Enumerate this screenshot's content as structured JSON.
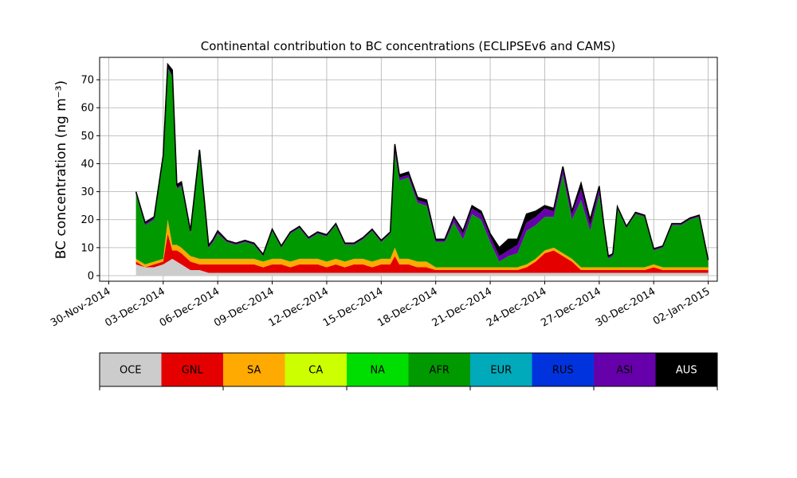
{
  "chart_data": {
    "type": "area",
    "title": "Continental contribution to BC concentrations (ECLIPSEv6 and CAMS)",
    "xlabel": "",
    "ylabel": "BC concentration (ng m⁻³)",
    "ylim": [
      -2,
      78
    ],
    "xlim": [
      "2014-11-29 12:00",
      "2015-01-02 12:00"
    ],
    "yticks": [
      0,
      10,
      20,
      30,
      40,
      50,
      60,
      70
    ],
    "xticks": [
      "30-Nov-2014",
      "03-Dec-2014",
      "06-Dec-2014",
      "09-Dec-2014",
      "12-Dec-2014",
      "15-Dec-2014",
      "18-Dec-2014",
      "21-Dec-2014",
      "24-Dec-2014",
      "27-Dec-2014",
      "30-Dec-2014",
      "02-Jan-2015"
    ],
    "xtick_dates": [
      "2014-11-30",
      "2014-12-03",
      "2014-12-06",
      "2014-12-09",
      "2014-12-12",
      "2014-12-15",
      "2014-12-18",
      "2014-12-21",
      "2014-12-24",
      "2014-12-27",
      "2014-12-30",
      "2015-01-02"
    ],
    "grid": true,
    "stacked": true,
    "x": [
      "2014-12-01 12:00",
      "2014-12-02 00:00",
      "2014-12-02 12:00",
      "2014-12-03 00:00",
      "2014-12-03 06:00",
      "2014-12-03 12:00",
      "2014-12-03 18:00",
      "2014-12-04 00:00",
      "2014-12-04 12:00",
      "2014-12-05 00:00",
      "2014-12-05 12:00",
      "2014-12-05 18:00",
      "2014-12-06 00:00",
      "2014-12-06 12:00",
      "2014-12-07 00:00",
      "2014-12-07 12:00",
      "2014-12-08 00:00",
      "2014-12-08 12:00",
      "2014-12-09 00:00",
      "2014-12-09 12:00",
      "2014-12-10 00:00",
      "2014-12-10 12:00",
      "2014-12-11 00:00",
      "2014-12-11 12:00",
      "2014-12-12 00:00",
      "2014-12-12 12:00",
      "2014-12-13 00:00",
      "2014-12-13 12:00",
      "2014-12-14 00:00",
      "2014-12-14 12:00",
      "2014-12-15 00:00",
      "2014-12-15 12:00",
      "2014-12-15 18:00",
      "2014-12-16 00:00",
      "2014-12-16 12:00",
      "2014-12-17 00:00",
      "2014-12-17 12:00",
      "2014-12-18 00:00",
      "2014-12-18 12:00",
      "2014-12-19 00:00",
      "2014-12-19 12:00",
      "2014-12-20 00:00",
      "2014-12-20 12:00",
      "2014-12-21 00:00",
      "2014-12-21 12:00",
      "2014-12-22 00:00",
      "2014-12-22 12:00",
      "2014-12-23 00:00",
      "2014-12-23 12:00",
      "2014-12-24 00:00",
      "2014-12-24 12:00",
      "2014-12-25 00:00",
      "2014-12-25 12:00",
      "2014-12-26 00:00",
      "2014-12-26 12:00",
      "2014-12-27 00:00",
      "2014-12-27 06:00",
      "2014-12-27 12:00",
      "2014-12-27 18:00",
      "2014-12-28 00:00",
      "2014-12-28 12:00",
      "2014-12-29 00:00",
      "2014-12-29 12:00",
      "2014-12-30 00:00",
      "2014-12-30 12:00",
      "2014-12-31 00:00",
      "2014-12-31 12:00",
      "2015-01-01 00:00",
      "2015-01-01 12:00",
      "2015-01-02 00:00"
    ],
    "series": [
      {
        "name": "OCE",
        "color": "#cccccc",
        "values": [
          4,
          3,
          3,
          4,
          5,
          6,
          5,
          4,
          2,
          2,
          1,
          1,
          1,
          1,
          1,
          1,
          1,
          1,
          1,
          1,
          1,
          1,
          1,
          1,
          1,
          1,
          1,
          1,
          1,
          1,
          1,
          1,
          1,
          1,
          1,
          1,
          1,
          1,
          1,
          1,
          1,
          1,
          1,
          1,
          1,
          1,
          1,
          1,
          1,
          1,
          1,
          1,
          1,
          1,
          1,
          1,
          1,
          1,
          1,
          1,
          1,
          1,
          1,
          1,
          1,
          1,
          1,
          1,
          1,
          1
        ]
      },
      {
        "name": "GNL",
        "color": "#e50000",
        "values": [
          1,
          0,
          1,
          1,
          10,
          3,
          4,
          4,
          3,
          2,
          3,
          3,
          3,
          3,
          3,
          3,
          3,
          2,
          3,
          3,
          2,
          3,
          3,
          3,
          2,
          3,
          2,
          3,
          3,
          2,
          3,
          3,
          6,
          3,
          3,
          2,
          2,
          1,
          1,
          1,
          1,
          1,
          1,
          1,
          1,
          1,
          1,
          2,
          4,
          7,
          8,
          6,
          4,
          1,
          1,
          1,
          1,
          1,
          1,
          1,
          1,
          1,
          1,
          2,
          1,
          1,
          1,
          1,
          1,
          1
        ]
      },
      {
        "name": "SA",
        "color": "#ffaa00",
        "values": [
          1,
          1,
          1,
          1,
          5,
          2,
          2,
          2,
          2,
          2,
          2,
          2,
          2,
          2,
          2,
          2,
          2,
          2,
          2,
          2,
          2,
          2,
          2,
          2,
          2,
          2,
          2,
          2,
          2,
          2,
          2,
          2,
          3,
          2,
          2,
          2,
          2,
          1,
          1,
          1,
          1,
          1,
          1,
          1,
          1,
          1,
          1,
          1,
          1,
          1,
          1,
          1,
          1,
          1,
          1,
          1,
          1,
          1,
          1,
          1,
          1,
          1,
          1,
          1,
          1,
          1,
          1,
          1,
          1,
          1
        ]
      },
      {
        "name": "CA",
        "color": "#ccff00",
        "values": [
          0,
          0,
          0,
          0,
          0,
          0,
          0,
          0,
          0,
          0,
          0,
          0,
          0,
          0,
          0,
          0,
          0,
          0,
          0,
          0,
          0,
          0,
          0,
          0,
          0,
          0,
          0,
          0,
          0,
          0,
          0,
          0,
          0,
          0,
          0,
          0,
          0,
          0,
          0,
          0,
          0,
          0,
          0,
          0,
          0,
          0,
          0,
          0,
          0,
          0,
          0,
          0,
          0,
          0,
          0,
          0,
          0,
          0,
          0,
          0,
          0,
          0,
          0,
          0,
          0,
          0,
          0,
          0,
          0,
          0
        ]
      },
      {
        "name": "NA",
        "color": "#00dd00",
        "values": [
          0,
          0,
          0,
          0,
          0,
          0,
          0,
          0,
          0,
          0,
          0,
          0,
          0,
          0,
          0,
          0,
          0,
          0,
          0,
          0,
          0,
          0,
          0,
          0,
          0,
          0,
          0,
          0,
          0,
          0,
          0,
          0,
          0,
          0,
          0,
          0,
          0,
          0,
          0,
          0,
          0,
          0,
          0,
          0,
          0,
          0,
          0,
          0,
          0,
          0,
          0,
          0,
          0,
          0,
          0,
          0,
          0,
          0,
          0,
          0,
          0,
          0,
          0,
          0,
          0,
          0,
          0,
          0,
          0,
          0
        ]
      },
      {
        "name": "AFR",
        "color": "#009900",
        "values": [
          23,
          14,
          15,
          36,
          54,
          60,
          20,
          22,
          8,
          38,
          4,
          6,
          9,
          6,
          5,
          6,
          5,
          2,
          10,
          4,
          10,
          11,
          7,
          9,
          9,
          12,
          6,
          5,
          7,
          11,
          6,
          9,
          34,
          28,
          29,
          21,
          20,
          9,
          9,
          16,
          10,
          19,
          17,
          9,
          2,
          4,
          5,
          12,
          12,
          12,
          11,
          28,
          14,
          24,
          13,
          26,
          14,
          3,
          4,
          21,
          14,
          19,
          18,
          5,
          7,
          15,
          15,
          17,
          18,
          2
        ]
      },
      {
        "name": "EUR",
        "color": "#00aabb",
        "values": [
          0,
          0,
          0,
          0,
          0,
          0,
          0,
          0,
          0,
          0,
          0,
          0,
          0,
          0,
          0,
          0,
          0,
          0,
          0,
          0,
          0,
          0,
          0,
          0,
          0,
          0,
          0,
          0,
          0,
          0,
          0,
          0,
          0,
          0,
          0,
          0,
          0,
          0,
          0,
          0,
          0,
          0,
          0,
          0,
          0,
          0,
          0,
          0,
          0,
          0,
          0,
          0,
          0,
          0,
          0,
          0,
          0,
          0,
          0,
          0,
          0,
          0,
          0,
          0,
          0,
          0,
          0,
          0,
          0,
          0
        ]
      },
      {
        "name": "RUS",
        "color": "#0033dd",
        "values": [
          0,
          0,
          0,
          0,
          0,
          0,
          0,
          0,
          0,
          0,
          0,
          0,
          0,
          0,
          0,
          0,
          0,
          0,
          0,
          0,
          0,
          0,
          0,
          0,
          0,
          0,
          0,
          0,
          0,
          0,
          0,
          0,
          0,
          0,
          0,
          0,
          0,
          0,
          0,
          0,
          0,
          0,
          0,
          0,
          0,
          0,
          0,
          0,
          0,
          0,
          0,
          0,
          0,
          0,
          0,
          0,
          0,
          0,
          0,
          0,
          0,
          0,
          0,
          0,
          0,
          0,
          0,
          0,
          0,
          0
        ]
      },
      {
        "name": "ASI",
        "color": "#6600aa",
        "values": [
          0.5,
          0.5,
          0.5,
          0.5,
          0.5,
          0.5,
          0.5,
          0.5,
          0.5,
          0.5,
          0.5,
          0.5,
          0.5,
          0.3,
          0.3,
          0.3,
          0.3,
          0.3,
          0.3,
          0.3,
          0.3,
          0.3,
          0.3,
          0.3,
          0.3,
          0.3,
          0.3,
          0.3,
          0.3,
          0.3,
          0.3,
          0.3,
          2,
          1,
          1,
          1,
          1,
          0.5,
          0.5,
          1.5,
          2,
          2,
          2,
          2,
          2,
          2,
          3,
          3,
          3,
          3,
          2,
          2,
          2,
          4,
          2,
          2,
          1,
          0.5,
          0.5,
          0.3,
          0.3,
          0.3,
          0.3,
          0.3,
          0.3,
          0.3,
          0.3,
          0.3,
          0.3,
          0.3
        ]
      },
      {
        "name": "AUS",
        "color": "#000000",
        "values": [
          0.5,
          0.5,
          0.5,
          0.5,
          1,
          2,
          1,
          1,
          0.5,
          0.5,
          0.3,
          0.5,
          0.5,
          0.3,
          0.3,
          0.3,
          0.3,
          0.3,
          0.3,
          0.3,
          0.3,
          0.3,
          0.3,
          0.3,
          0.3,
          0.3,
          0.3,
          0.3,
          0.3,
          0.3,
          0.3,
          0.3,
          1,
          1,
          1,
          1,
          1,
          0.5,
          0.5,
          0.5,
          1,
          1,
          1,
          1,
          3,
          4,
          2,
          3,
          2,
          1,
          1,
          1,
          1,
          2,
          2,
          1,
          0.5,
          0.5,
          0.3,
          0.3,
          0.3,
          0.3,
          0.3,
          0.3,
          0.3,
          0.3,
          0.3,
          0.3,
          0.3,
          0.3
        ]
      }
    ],
    "legend": {
      "placement": "bottom colorbar",
      "entries": [
        "OCE",
        "GNL",
        "SA",
        "CA",
        "NA",
        "AFR",
        "EUR",
        "RUS",
        "ASI",
        "AUS"
      ],
      "text_colors": [
        "#000000",
        "#000000",
        "#000000",
        "#000000",
        "#000000",
        "#000000",
        "#000000",
        "#000000",
        "#000000",
        "#ffffff"
      ]
    }
  }
}
